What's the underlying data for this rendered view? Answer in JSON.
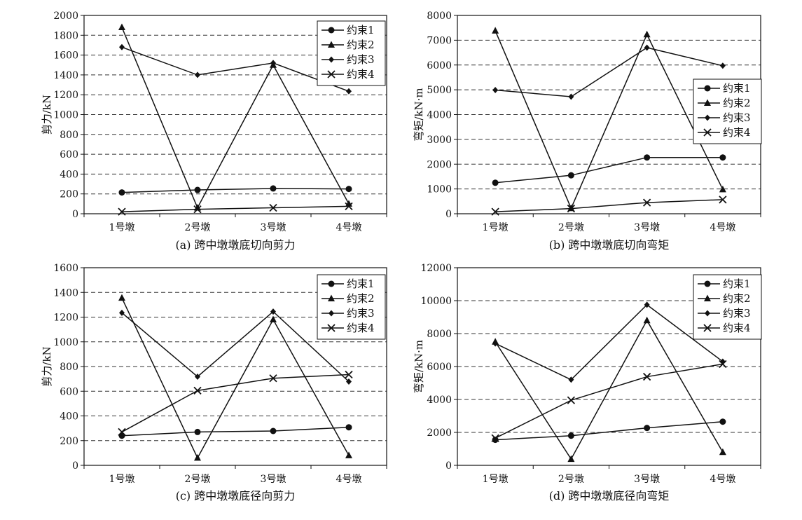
{
  "chart_data": [
    {
      "type": "line",
      "title": "(a) 跨中墩墩底切向剪力",
      "ylabel": "剪力/kN",
      "ylim": [
        0,
        2000
      ],
      "ystep": 200,
      "categories": [
        "1号墩",
        "2号墩",
        "3号墩",
        "4号墩"
      ],
      "legend_position": "top-right",
      "grid": "horizontal-dashed",
      "series": [
        {
          "name": "约束1",
          "marker": "circle",
          "values": [
            215,
            240,
            255,
            250
          ]
        },
        {
          "name": "约束2",
          "marker": "triangle",
          "values": [
            1880,
            60,
            1500,
            100
          ]
        },
        {
          "name": "约束3",
          "marker": "diamond",
          "values": [
            1680,
            1400,
            1520,
            1235
          ]
        },
        {
          "name": "约束4",
          "marker": "cross",
          "values": [
            20,
            45,
            60,
            75
          ]
        }
      ]
    },
    {
      "type": "line",
      "title": "(b) 跨中墩墩底切向弯矩",
      "ylabel": "弯矩/kN·m",
      "ylim": [
        0,
        8000
      ],
      "ystep": 1000,
      "categories": [
        "1号墩",
        "2号墩",
        "3号墩",
        "4号墩"
      ],
      "legend_position": "right",
      "grid": "horizontal-dashed",
      "series": [
        {
          "name": "约束1",
          "marker": "circle",
          "values": [
            1250,
            1550,
            2270,
            2270
          ]
        },
        {
          "name": "约束2",
          "marker": "triangle",
          "values": [
            7380,
            220,
            7230,
            980
          ]
        },
        {
          "name": "约束3",
          "marker": "diamond",
          "values": [
            4990,
            4720,
            6700,
            5970
          ]
        },
        {
          "name": "约束4",
          "marker": "cross",
          "values": [
            80,
            210,
            450,
            570
          ]
        }
      ]
    },
    {
      "type": "line",
      "title": "(c) 跨中墩墩底径向剪力",
      "ylabel": "剪力/kN",
      "ylim": [
        0,
        1600
      ],
      "ystep": 200,
      "categories": [
        "1号墩",
        "2号墩",
        "3号墩",
        "4号墩"
      ],
      "legend_position": "top-right",
      "grid": "horizontal-dashed",
      "series": [
        {
          "name": "约束1",
          "marker": "circle",
          "values": [
            240,
            270,
            278,
            308
          ]
        },
        {
          "name": "约束2",
          "marker": "triangle",
          "values": [
            1355,
            60,
            1180,
            80
          ]
        },
        {
          "name": "约束3",
          "marker": "diamond",
          "values": [
            1235,
            718,
            1245,
            678
          ]
        },
        {
          "name": "约束4",
          "marker": "cross",
          "values": [
            270,
            605,
            705,
            735
          ]
        }
      ]
    },
    {
      "type": "line",
      "title": "(d) 跨中墩墩底径向弯矩",
      "ylabel": "弯矩/kN·m",
      "ylim": [
        0,
        12000
      ],
      "ystep": 2000,
      "categories": [
        "1号墩",
        "2号墩",
        "3号墩",
        "4号墩"
      ],
      "legend_position": "top-right",
      "grid": "horizontal-dashed",
      "series": [
        {
          "name": "约束1",
          "marker": "circle",
          "values": [
            1550,
            1800,
            2270,
            2650
          ]
        },
        {
          "name": "约束2",
          "marker": "triangle",
          "values": [
            7500,
            380,
            8800,
            800
          ]
        },
        {
          "name": "约束3",
          "marker": "diamond",
          "values": [
            7400,
            5200,
            9750,
            6300
          ]
        },
        {
          "name": "约束4",
          "marker": "cross",
          "values": [
            1650,
            3950,
            5380,
            6150
          ]
        }
      ]
    }
  ]
}
